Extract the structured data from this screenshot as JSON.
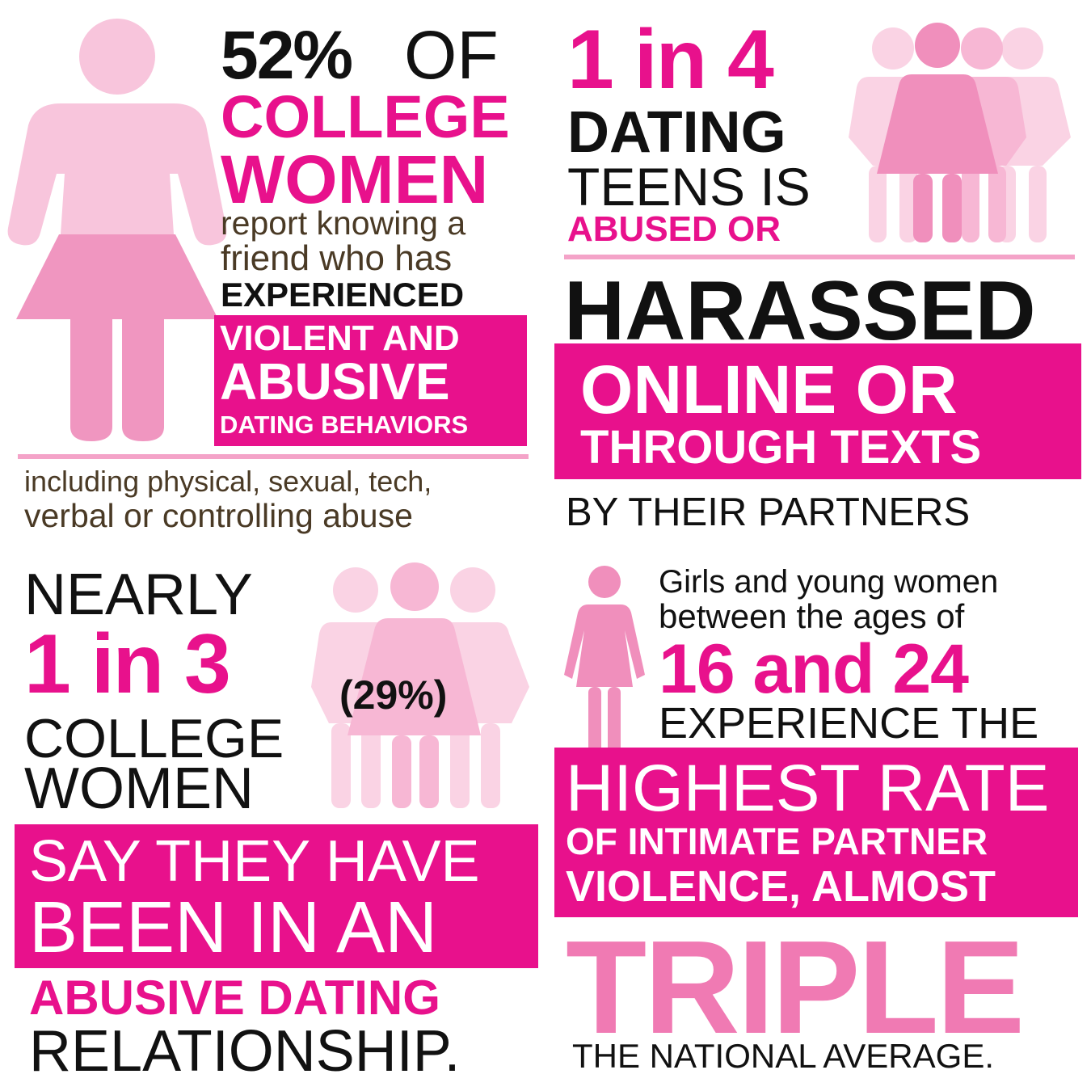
{
  "colors": {
    "magenta": "#e8118c",
    "light_pink": "#f8c5dc",
    "mid_pink": "#f08fbc",
    "triple_pink": "#f07ab3",
    "black": "#111111",
    "brown": "#4a3a25"
  },
  "q1": {
    "stat": "52%",
    "of": "OF",
    "line2": "COLLEGE",
    "line3": "WOMEN",
    "line4": "report knowing a",
    "line5": "friend who has",
    "line6": "EXPERIENCED",
    "box1": "VIOLENT AND",
    "box2": "ABUSIVE",
    "box3": "DATING BEHAVIORS",
    "foot1": "including physical, sexual, tech,",
    "foot2": "verbal or controlling abuse",
    "icon": "woman-figure-icon"
  },
  "q2": {
    "line1": "1 in 4",
    "line2": "DATING",
    "line3": "TEENS IS",
    "line4": "ABUSED OR",
    "line5": "HARASSED",
    "box1": "ONLINE OR",
    "box2": "THROUGH TEXTS",
    "line6": "BY THEIR PARTNERS",
    "icon": "four-women-icon"
  },
  "q3": {
    "line1": "NEARLY",
    "line2": "1 in 3",
    "line3": "COLLEGE",
    "line4": "WOMEN",
    "pct": "(29%)",
    "box1": "SAY THEY HAVE",
    "box2": "BEEN IN AN",
    "line5": "ABUSIVE DATING",
    "line6": "RELATIONSHIP.",
    "icon": "three-women-icon"
  },
  "q4": {
    "line1": "Girls and young women",
    "line2": "between the ages of",
    "line3": "16 and 24",
    "line4": "EXPERIENCE THE",
    "box1": "HIGHEST RATE",
    "box2": "OF INTIMATE PARTNER",
    "box3": "VIOLENCE, ALMOST",
    "line5": "TRIPLE",
    "line6": "THE NATIONAL AVERAGE.",
    "icon": "small-woman-icon"
  }
}
